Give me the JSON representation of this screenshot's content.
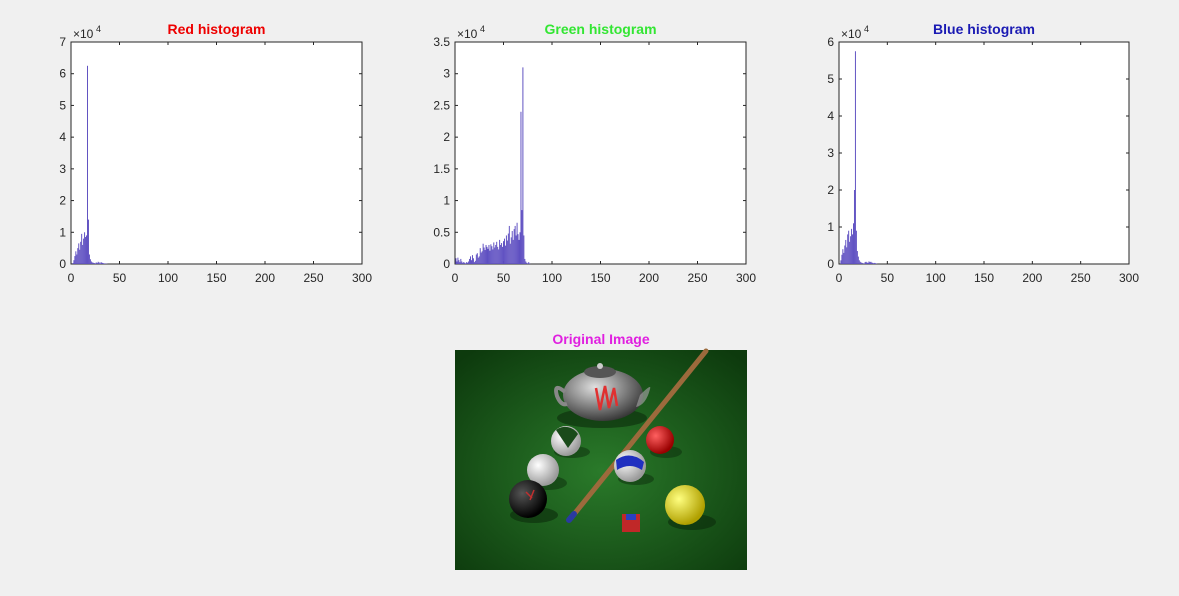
{
  "figure": {
    "background": "#f0f0f0",
    "bar_color": "#5e4fc1"
  },
  "chart_data": [
    {
      "type": "bar",
      "title": "Red histogram",
      "title_color": "#ee0000",
      "xlim": [
        0,
        300
      ],
      "ylim": [
        0,
        70000
      ],
      "x_ticks": [
        "0",
        "50",
        "100",
        "150",
        "200",
        "250",
        "300"
      ],
      "y_ticks": [
        "0",
        "1",
        "2",
        "3",
        "4",
        "5",
        "6",
        "7"
      ],
      "y_multiplier": {
        "base": "×10",
        "exp": "4"
      },
      "series": [
        {
          "x": [
            2,
            3,
            4,
            5,
            6,
            7,
            8,
            9,
            10,
            11,
            12,
            13,
            14,
            15,
            16,
            17,
            18,
            19,
            20,
            21,
            22,
            23,
            24,
            25,
            26,
            27,
            28,
            29,
            30,
            31,
            32,
            33,
            34,
            35,
            36,
            37,
            38,
            39,
            40
          ],
          "values": [
            300,
            1200,
            2500,
            4000,
            3000,
            5000,
            6500,
            4500,
            7000,
            9500,
            6000,
            8000,
            10000,
            8500,
            9000,
            62500,
            14000,
            3000,
            1500,
            800,
            500,
            400,
            300,
            200,
            500,
            300,
            700,
            500,
            200,
            600,
            400,
            300,
            200,
            100,
            100,
            100,
            0,
            0,
            0
          ]
        }
      ]
    },
    {
      "type": "bar",
      "title": "Green histogram",
      "title_color": "#33e633",
      "xlim": [
        0,
        300
      ],
      "ylim": [
        0,
        35000
      ],
      "x_ticks": [
        "0",
        "50",
        "100",
        "150",
        "200",
        "250",
        "300"
      ],
      "y_ticks": [
        "0",
        "0.5",
        "1",
        "1.5",
        "2",
        "2.5",
        "3",
        "3.5"
      ],
      "y_multiplier": {
        "base": "×10",
        "exp": "4"
      },
      "series": [
        {
          "x": [
            1,
            2,
            3,
            4,
            5,
            6,
            7,
            8,
            9,
            10,
            11,
            12,
            13,
            14,
            15,
            16,
            17,
            18,
            19,
            20,
            21,
            22,
            23,
            24,
            25,
            26,
            27,
            28,
            29,
            30,
            31,
            32,
            33,
            34,
            35,
            36,
            37,
            38,
            39,
            40,
            41,
            42,
            43,
            44,
            45,
            46,
            47,
            48,
            49,
            50,
            51,
            52,
            53,
            54,
            55,
            56,
            57,
            58,
            59,
            60,
            61,
            62,
            63,
            64,
            65,
            66,
            67,
            68,
            69,
            70,
            71,
            72,
            73,
            74,
            75,
            76,
            77,
            78,
            79,
            80
          ],
          "values": [
            900,
            400,
            1000,
            600,
            300,
            800,
            400,
            200,
            300,
            200,
            100,
            300,
            200,
            400,
            800,
            1200,
            600,
            1400,
            900,
            300,
            500,
            1500,
            1700,
            1000,
            1200,
            2500,
            1800,
            2000,
            3200,
            2600,
            2200,
            3000,
            2700,
            2400,
            3000,
            2100,
            3100,
            2800,
            2300,
            3400,
            2600,
            3000,
            3500,
            2700,
            2300,
            3800,
            3000,
            3300,
            2700,
            3600,
            4000,
            2900,
            4500,
            3700,
            4800,
            6000,
            3200,
            4200,
            5200,
            3800,
            5500,
            6000,
            4500,
            6500,
            4700,
            3800,
            5000,
            24000,
            8500,
            31000,
            4500,
            800,
            400,
            200,
            100,
            300,
            100,
            0,
            0,
            0
          ]
        }
      ]
    },
    {
      "type": "bar",
      "title": "Blue histogram",
      "title_color": "#1a1ab3",
      "xlim": [
        0,
        300
      ],
      "ylim": [
        0,
        60000
      ],
      "x_ticks": [
        "0",
        "50",
        "100",
        "150",
        "200",
        "250",
        "300"
      ],
      "y_ticks": [
        "0",
        "1",
        "2",
        "3",
        "4",
        "5",
        "6"
      ],
      "y_multiplier": {
        "base": "×10",
        "exp": "4"
      },
      "series": [
        {
          "x": [
            2,
            3,
            4,
            5,
            6,
            7,
            8,
            9,
            10,
            11,
            12,
            13,
            14,
            15,
            16,
            17,
            18,
            19,
            20,
            21,
            22,
            23,
            24,
            25,
            26,
            27,
            28,
            29,
            30,
            31,
            32,
            33,
            34,
            35,
            36,
            37,
            38,
            39,
            40,
            41,
            42
          ],
          "values": [
            1000,
            2500,
            4000,
            3000,
            5000,
            6500,
            4500,
            8000,
            9000,
            6000,
            7500,
            9500,
            8000,
            11000,
            20000,
            57500,
            9000,
            3500,
            2000,
            1000,
            600,
            400,
            300,
            200,
            100,
            500,
            600,
            400,
            300,
            700,
            500,
            600,
            400,
            300,
            200,
            300,
            200,
            100,
            0,
            0,
            0
          ]
        }
      ]
    }
  ],
  "image_panel": {
    "title": "Original Image",
    "title_color": "#e020e0",
    "felt_color": "#1f5a1f"
  }
}
